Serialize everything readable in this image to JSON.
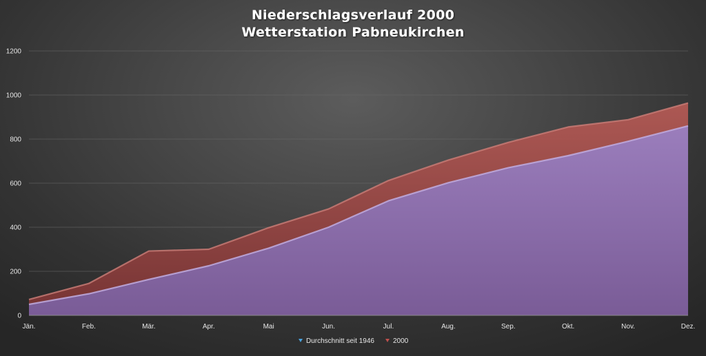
{
  "chart_data": {
    "type": "area",
    "title": "Niederschlagsverlauf 2000",
    "subtitle": "Wetterstation Pabneukirchen",
    "categories": [
      "Jän.",
      "Feb.",
      "Mär.",
      "Apr.",
      "Mai",
      "Jun.",
      "Jul.",
      "Aug.",
      "Sep.",
      "Okt.",
      "Nov.",
      "Dez."
    ],
    "series": [
      {
        "name": "2000",
        "color": "#a04848",
        "values": [
          72,
          145,
          292,
          300,
          398,
          483,
          612,
          705,
          785,
          855,
          888,
          964
        ]
      },
      {
        "name": "Durchschnitt seit 1946",
        "color": "#8a6fb0",
        "values": [
          50,
          98,
          163,
          225,
          305,
          400,
          520,
          602,
          670,
          725,
          790,
          860
        ]
      }
    ],
    "ylim": [
      0,
      1200
    ],
    "yticks": [
      0,
      200,
      400,
      600,
      800,
      1000,
      1200
    ],
    "grid": true,
    "legend_position": "bottom",
    "legend": [
      {
        "label": "Durchschnitt seit 1946",
        "color": "#4aa3e0"
      },
      {
        "label": "2000",
        "color": "#c0504d"
      }
    ]
  }
}
